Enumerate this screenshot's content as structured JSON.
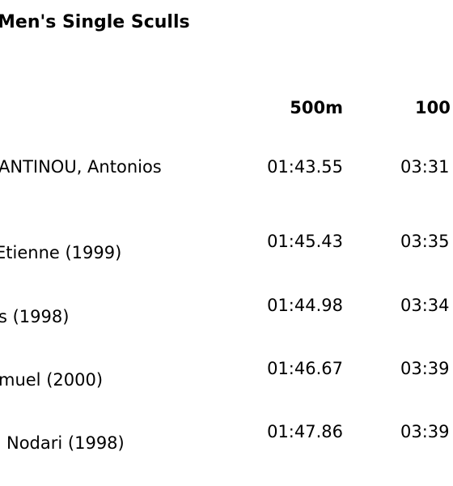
{
  "title": "Men's Single Sculls",
  "table": {
    "header": [
      "500m",
      "100"
    ],
    "rows": [
      [
        "ANTINOU, Antonios",
        "01:43.55",
        "03:31"
      ],
      [
        "Etienne (1999)",
        "01:45.43",
        "03:35"
      ],
      [
        "s (1998)",
        "01:44.98",
        "03:34"
      ],
      [
        "muel (2000)",
        "01:46.67",
        "03:39"
      ],
      [
        "Nodari (1998)",
        "01:47.86",
        "03:39"
      ]
    ]
  }
}
